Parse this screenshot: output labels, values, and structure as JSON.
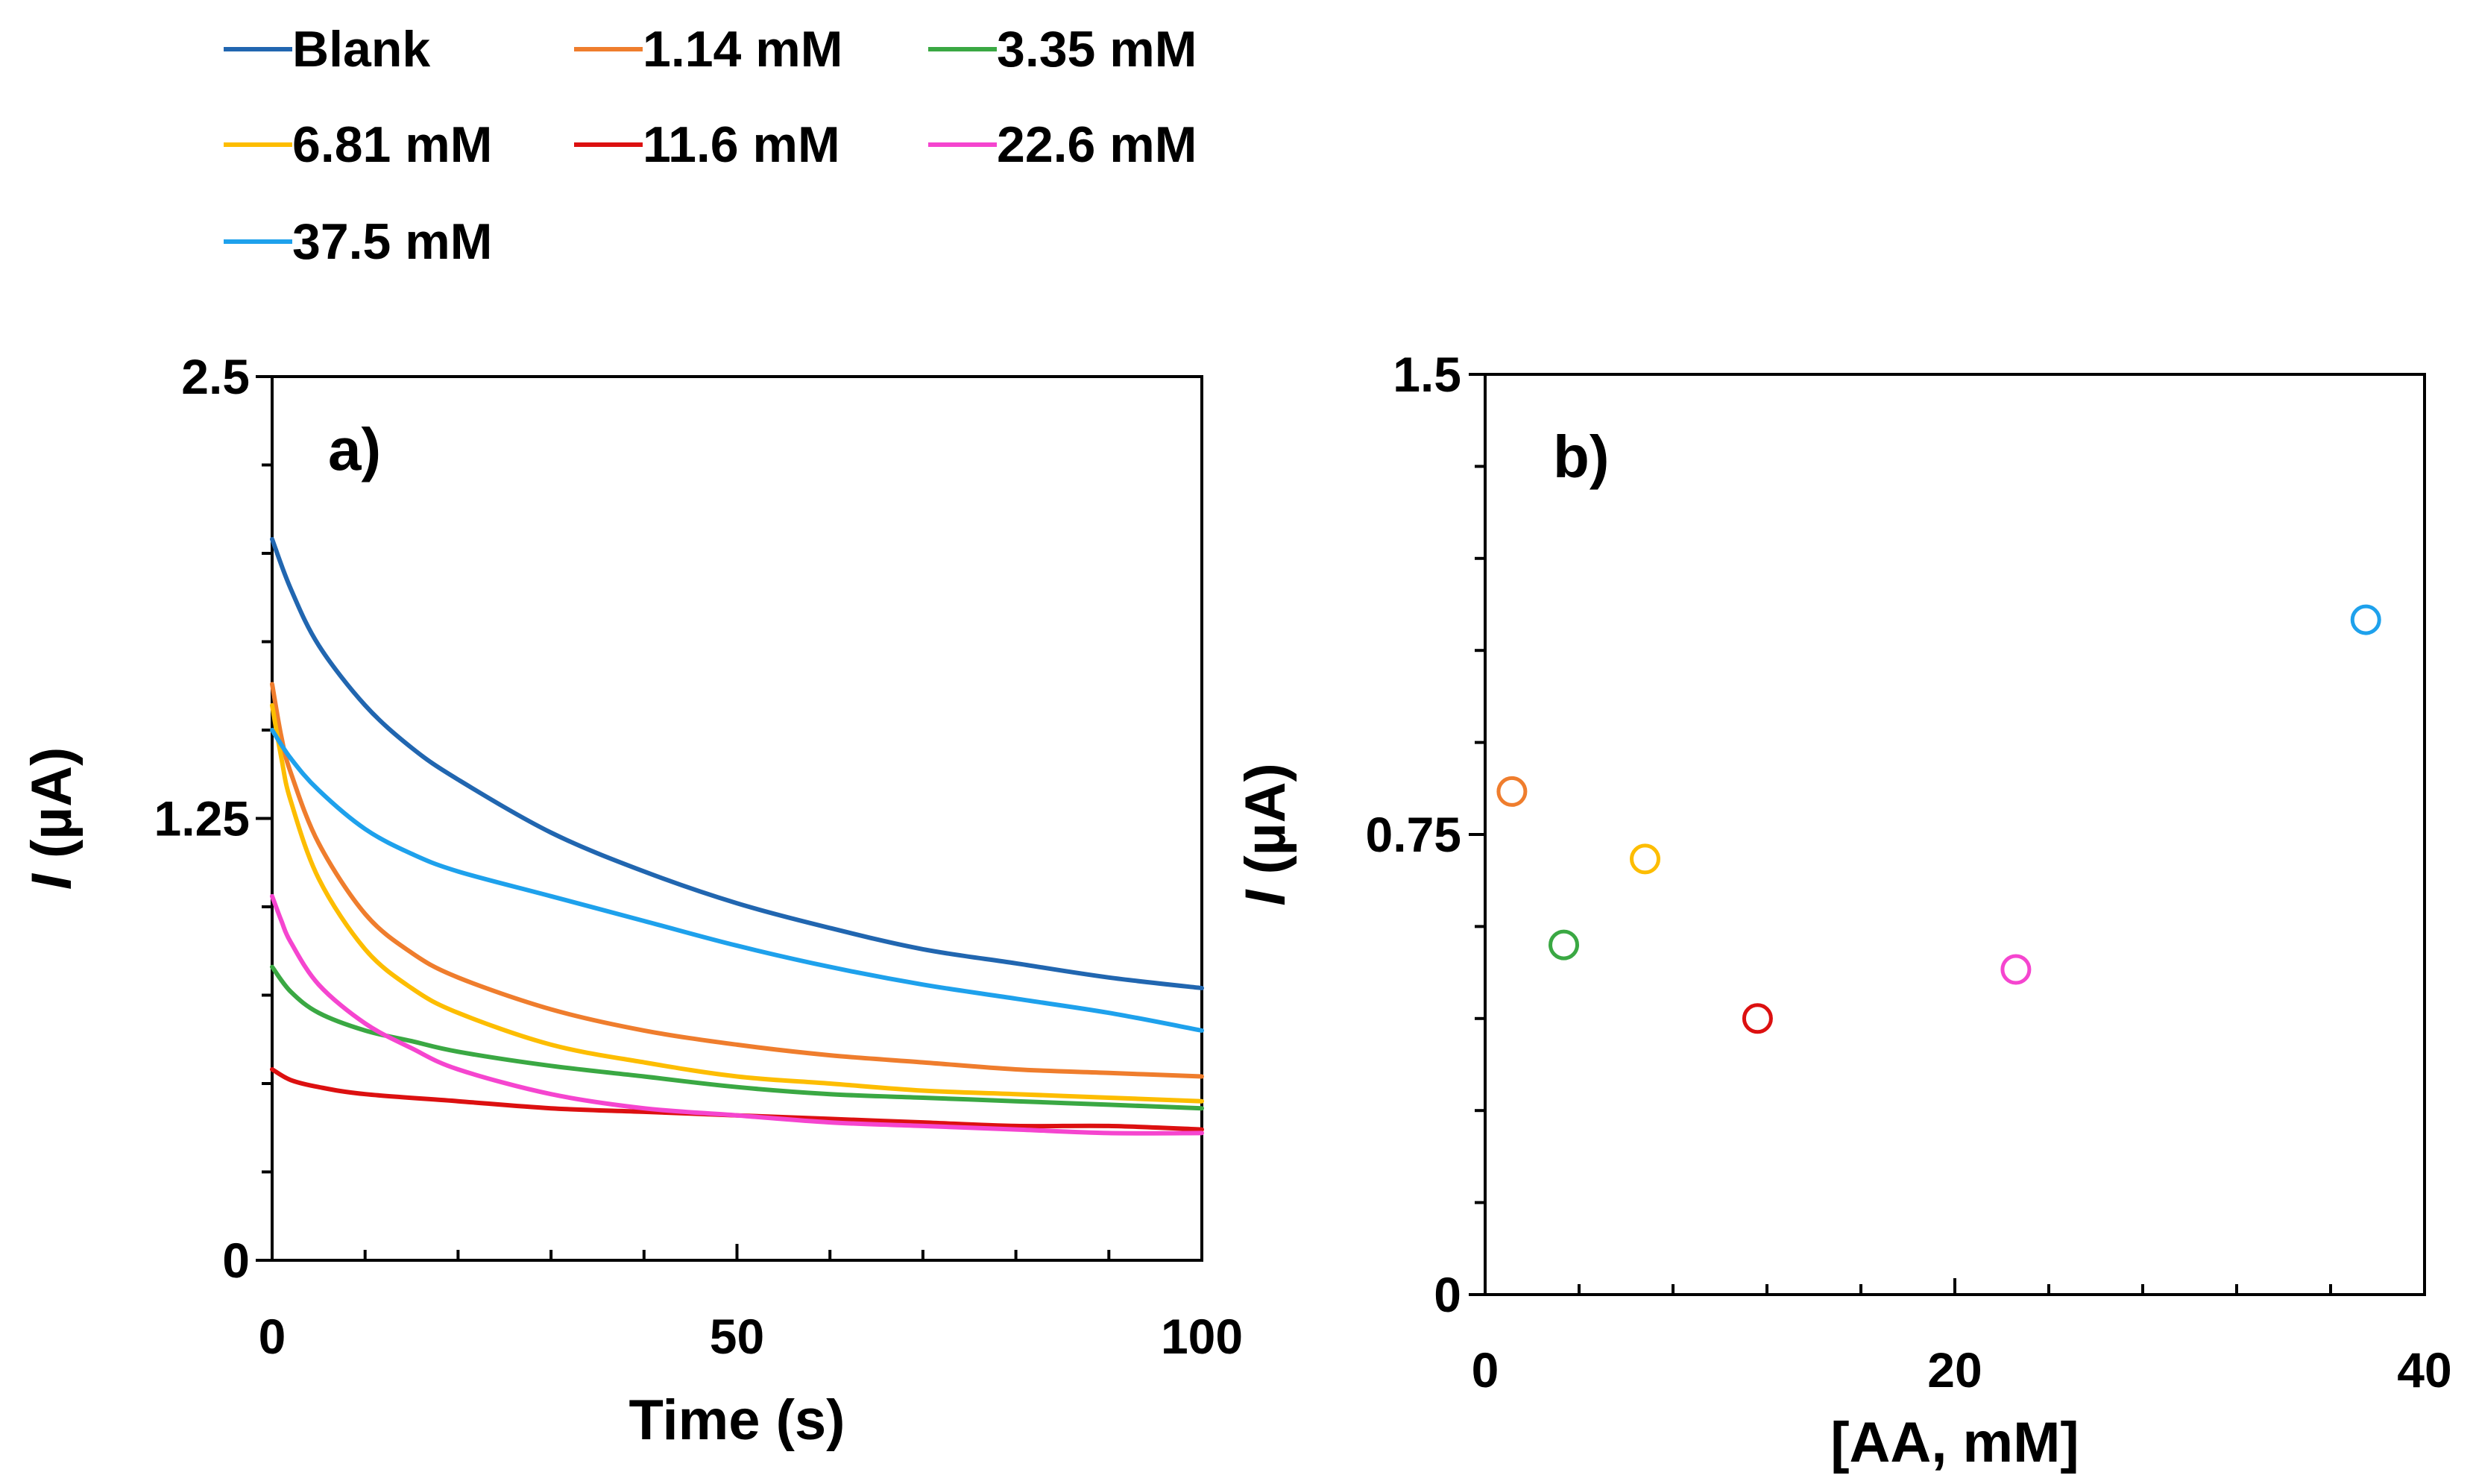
{
  "legend": {
    "entries": [
      {
        "label": "Blank",
        "color": "#2166b0"
      },
      {
        "label": "1.14 mM",
        "color": "#ef7d2d"
      },
      {
        "label": "3.35 mM",
        "color": "#3aa843"
      },
      {
        "label": "6.81 mM",
        "color": "#fdbd00"
      },
      {
        "label": "11.6 mM",
        "color": "#dc1010"
      },
      {
        "label": "22.6 mM",
        "color": "#f545cf"
      },
      {
        "label": "37.5 mM",
        "color": "#1ea1ec"
      }
    ]
  },
  "chart_data": [
    {
      "type": "line",
      "panel_label": "a)",
      "xlabel": "Time (s)",
      "ylabel_italic": "I",
      "ylabel_rest": " (µA)",
      "xlim": [
        0,
        100
      ],
      "ylim": [
        0,
        2.5
      ],
      "xticks": [
        0,
        50,
        100
      ],
      "yticks": [
        0,
        1.25,
        2.5
      ],
      "xtick_labels": [
        "0",
        "50",
        "100"
      ],
      "ytick_labels": [
        "0",
        "1.25",
        "2.5"
      ],
      "x_minor_step": 10,
      "y_minor_step": 0.25,
      "series": [
        {
          "name": "Blank",
          "color": "#2166b0",
          "x": [
            0,
            2,
            5,
            10,
            15,
            20,
            30,
            40,
            50,
            60,
            70,
            80,
            90,
            100
          ],
          "values": [
            2.04,
            1.9,
            1.74,
            1.57,
            1.45,
            1.36,
            1.21,
            1.1,
            1.01,
            0.94,
            0.88,
            0.84,
            0.8,
            0.77
          ]
        },
        {
          "name": "1.14 mM",
          "color": "#ef7d2d",
          "x": [
            0,
            1,
            2,
            5,
            10,
            15,
            20,
            30,
            40,
            50,
            60,
            70,
            80,
            90,
            100
          ],
          "values": [
            1.63,
            1.48,
            1.38,
            1.18,
            0.98,
            0.87,
            0.8,
            0.71,
            0.65,
            0.61,
            0.58,
            0.56,
            0.54,
            0.53,
            0.52
          ]
        },
        {
          "name": "3.35 mM",
          "color": "#3aa843",
          "x": [
            0,
            2,
            5,
            10,
            15,
            20,
            30,
            40,
            50,
            60,
            70,
            80,
            90,
            100
          ],
          "values": [
            0.83,
            0.76,
            0.7,
            0.65,
            0.62,
            0.59,
            0.55,
            0.52,
            0.49,
            0.47,
            0.46,
            0.45,
            0.44,
            0.43
          ]
        },
        {
          "name": "6.81 mM",
          "color": "#fdbd00",
          "x": [
            0,
            1,
            2,
            5,
            10,
            15,
            20,
            30,
            40,
            50,
            60,
            70,
            80,
            90,
            100
          ],
          "values": [
            1.57,
            1.42,
            1.3,
            1.08,
            0.88,
            0.77,
            0.7,
            0.61,
            0.56,
            0.52,
            0.5,
            0.48,
            0.47,
            0.46,
            0.45
          ]
        },
        {
          "name": "11.6 mM",
          "color": "#dc1010",
          "x": [
            0,
            2,
            5,
            10,
            20,
            30,
            40,
            50,
            60,
            70,
            80,
            90,
            100
          ],
          "values": [
            0.54,
            0.51,
            0.49,
            0.47,
            0.45,
            0.43,
            0.42,
            0.41,
            0.4,
            0.39,
            0.38,
            0.38,
            0.37
          ]
        },
        {
          "name": "22.6 mM",
          "color": "#f545cf",
          "x": [
            0,
            1,
            2,
            5,
            10,
            15,
            20,
            30,
            40,
            50,
            60,
            70,
            80,
            90,
            100
          ],
          "values": [
            1.03,
            0.96,
            0.9,
            0.78,
            0.67,
            0.6,
            0.54,
            0.47,
            0.43,
            0.41,
            0.39,
            0.38,
            0.37,
            0.36,
            0.36
          ]
        },
        {
          "name": "37.5 mM",
          "color": "#1ea1ec",
          "x": [
            0,
            2,
            5,
            10,
            15,
            20,
            30,
            40,
            50,
            60,
            70,
            80,
            90,
            100
          ],
          "values": [
            1.5,
            1.42,
            1.33,
            1.22,
            1.15,
            1.1,
            1.03,
            0.96,
            0.89,
            0.83,
            0.78,
            0.74,
            0.7,
            0.65
          ]
        }
      ]
    },
    {
      "type": "scatter",
      "panel_label": "b)",
      "xlabel": "[AA, mM]",
      "ylabel_italic": "I",
      "ylabel_rest": " (µA)",
      "xlim": [
        0,
        40
      ],
      "ylim": [
        0,
        1.5
      ],
      "xticks": [
        0,
        20,
        40
      ],
      "yticks": [
        0,
        0.75,
        1.5
      ],
      "xtick_labels": [
        "0",
        "20",
        "40"
      ],
      "ytick_labels": [
        "0",
        "0.75",
        "1.5"
      ],
      "x_minor_step": 4,
      "y_minor_step": 0.15,
      "points": [
        {
          "name": "1.14 mM",
          "color": "#ef7d2d",
          "x": 1.14,
          "y": 0.82
        },
        {
          "name": "3.35 mM",
          "color": "#3aa843",
          "x": 3.35,
          "y": 0.57
        },
        {
          "name": "6.81 mM",
          "color": "#fdbd00",
          "x": 6.81,
          "y": 0.71
        },
        {
          "name": "11.6 mM",
          "color": "#dc1010",
          "x": 11.6,
          "y": 0.45
        },
        {
          "name": "22.6 mM",
          "color": "#f545cf",
          "x": 22.6,
          "y": 0.53
        },
        {
          "name": "37.5 mM",
          "color": "#1ea1ec",
          "x": 37.5,
          "y": 1.1
        }
      ]
    }
  ]
}
